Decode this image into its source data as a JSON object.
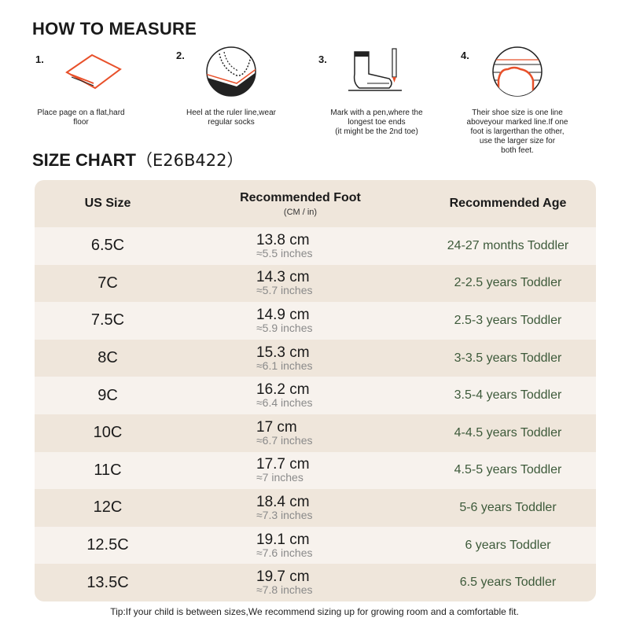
{
  "measure": {
    "title": "HOW TO MEASURE",
    "steps": [
      {
        "num": "1.",
        "caption": "Place page on a flat,hard\nfloor",
        "icon": "paper-icon"
      },
      {
        "num": "2.",
        "caption": "Heel at the ruler line,wear\nregular socks",
        "icon": "heel-icon"
      },
      {
        "num": "3.",
        "caption": "Mark with a pen,where the\nlongest toe ends\n(it might be the 2nd toe)",
        "icon": "sock-pen-icon"
      },
      {
        "num": "4.",
        "caption": "Their shoe size is one line\naboveyour marked line.If one\nfoot is largerthan the other,\nuse the larger size for\nboth feet.",
        "icon": "foot-ruler-icon"
      }
    ]
  },
  "size_chart": {
    "title": "SIZE CHART",
    "code": "（E26B422）",
    "headers": {
      "us_size": "US Size",
      "foot": "Recommended Foot",
      "foot_sub": "(CM / in)",
      "age": "Recommended Age"
    },
    "rows": [
      {
        "size": "6.5C",
        "cm": "13.8 cm",
        "in": "≈5.5 inches",
        "age": "24-27 months Toddler"
      },
      {
        "size": "7C",
        "cm": "14.3 cm",
        "in": "≈5.7 inches",
        "age": "2-2.5 years Toddler"
      },
      {
        "size": "7.5C",
        "cm": "14.9 cm",
        "in": "≈5.9 inches",
        "age": "2.5-3 years Toddler"
      },
      {
        "size": "8C",
        "cm": "15.3 cm",
        "in": "≈6.1 inches",
        "age": "3-3.5 years Toddler"
      },
      {
        "size": "9C",
        "cm": "16.2 cm",
        "in": "≈6.4 inches",
        "age": "3.5-4 years Toddler"
      },
      {
        "size": "10C",
        "cm": "17 cm",
        "in": "≈6.7 inches",
        "age": "4-4.5 years Toddler"
      },
      {
        "size": "11C",
        "cm": "17.7 cm",
        "in": "≈7 inches",
        "age": "4.5-5 years Toddler"
      },
      {
        "size": "12C",
        "cm": "18.4 cm",
        "in": "≈7.3 inches",
        "age": "5-6 years Toddler"
      },
      {
        "size": "12.5C",
        "cm": "19.1 cm",
        "in": "≈7.6 inches",
        "age": "6 years Toddler"
      },
      {
        "size": "13.5C",
        "cm": "19.7 cm",
        "in": "≈7.8 inches",
        "age": "6.5 years Toddler"
      }
    ]
  },
  "tip": "Tip:If your child is between sizes,We recommend sizing up for growing room and a comfortable fit.",
  "colors": {
    "header_bg": "#efe6db",
    "row_light": "#f7f2ed",
    "accent": "#e8502a",
    "age_text": "#3d5a3a"
  }
}
